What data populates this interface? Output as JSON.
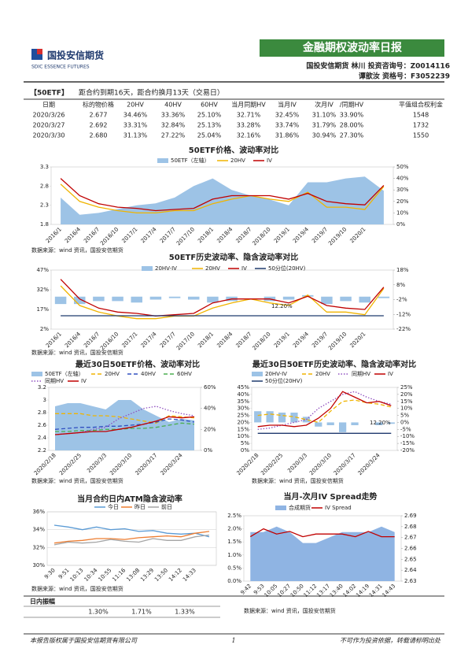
{
  "header": {
    "company": "国投安信期货",
    "company_en": "SDIC ESSENCE FUTURES",
    "report_title": "金融期权波动率日报",
    "analyst_line": "国投安信期货 林川 投资咨询号：Z0014116",
    "analyst_line2": "谭歆汝 资格号：F3052239"
  },
  "info": {
    "tag": "【50ETF】",
    "text": "距合约到期16天，距合约换月13天（交易日）"
  },
  "table": {
    "columns": [
      "日期",
      "标的物价格",
      "20HV",
      "40HV",
      "60HV",
      "当月同期HV",
      "当月IV",
      "次月IV",
      "/同期HV",
      "平值组合权利金"
    ],
    "rows": [
      [
        "2020/3/26",
        "2.677",
        "34.46%",
        "33.36%",
        "25.10%",
        "32.71%",
        "32.45%",
        "31.10%",
        "33.90%",
        "1548"
      ],
      [
        "2020/3/27",
        "2.692",
        "33.31%",
        "32.84%",
        "25.13%",
        "33.28%",
        "33.74%",
        "31.79%",
        "28.00%",
        "1732"
      ],
      [
        "2020/3/30",
        "2.680",
        "31.13%",
        "27.22%",
        "25.04%",
        "32.16%",
        "31.86%",
        "30.94%",
        "27.30%",
        "1550"
      ]
    ]
  },
  "chart_data": [
    {
      "type": "line",
      "title": "50ETF价格、波动率对比",
      "source": "数据来源：wind 资讯，国投安信期货",
      "categories": [
        "2016/1",
        "2016/4",
        "2016/7",
        "2016/10",
        "2017/1",
        "2017/4",
        "2017/7",
        "2017/10",
        "2018/1",
        "2018/4",
        "2018/7",
        "2018/10",
        "2019/1",
        "2019/4",
        "2019/7",
        "2019/10",
        "2020/1",
        null
      ],
      "series": [
        {
          "name": "50ETF（左轴）",
          "kind": "area",
          "color": "#9dc3e6",
          "values": [
            2.5,
            2.05,
            2.1,
            2.2,
            2.3,
            2.35,
            2.5,
            2.8,
            3.0,
            2.7,
            2.55,
            2.45,
            2.3,
            2.9,
            2.9,
            3.0,
            3.05,
            2.68
          ]
        },
        {
          "name": "20HV",
          "kind": "line",
          "axis": "y2",
          "color": "#f0b400",
          "values": [
            35,
            20,
            15,
            12,
            10,
            10,
            12,
            12,
            18,
            22,
            25,
            22,
            20,
            28,
            15,
            15,
            13,
            33
          ]
        },
        {
          "name": "IV",
          "kind": "line",
          "axis": "y2",
          "color": "#c00000",
          "values": [
            40,
            25,
            18,
            15,
            14,
            12,
            13,
            14,
            22,
            25,
            25,
            25,
            22,
            27,
            20,
            18,
            17,
            34
          ]
        }
      ],
      "ylim": [
        1.8,
        3.3
      ],
      "yticks": [
        1.8,
        2.3,
        2.8,
        3.3
      ],
      "y2lim": [
        0,
        50
      ],
      "y2ticks": [
        {
          "value": 0,
          "label": "0%"
        },
        {
          "value": 10,
          "label": "10%"
        },
        {
          "value": 20,
          "label": "20%"
        },
        {
          "value": 30,
          "label": "30%"
        },
        {
          "value": 40,
          "label": "40%"
        },
        {
          "value": 50,
          "label": "50%"
        }
      ],
      "grid": false
    },
    {
      "type": "line",
      "title": "50ETF历史波动率、隐含波动率对比",
      "source": "数据来源：wind 资讯，国投安信期货",
      "annotation": "12.20%",
      "categories": [
        "2016/1",
        "2016/4",
        "2016/7",
        "2016/10",
        "2017/1",
        "2017/4",
        "2017/7",
        "2017/10",
        "2018/1",
        "2018/4",
        "2018/7",
        "2018/10",
        "2019/1",
        "2019/4",
        "2019/7",
        "2019/10",
        "2020/1",
        null
      ],
      "series": [
        {
          "name": "20HV-IV",
          "kind": "bar",
          "axis": "y2",
          "color": "#9dc3e6",
          "values": [
            -5,
            -5,
            -3,
            -3,
            -4,
            -2,
            -1,
            -2,
            -4,
            -3,
            0,
            -3,
            -2,
            1,
            -5,
            -3,
            -4,
            -1
          ]
        },
        {
          "name": "20HV",
          "kind": "line",
          "color": "#f0b400",
          "values": [
            35,
            20,
            15,
            12,
            10,
            10,
            12,
            12,
            18,
            22,
            25,
            22,
            20,
            28,
            15,
            15,
            13,
            33
          ]
        },
        {
          "name": "IV",
          "kind": "line",
          "color": "#c00000",
          "values": [
            40,
            25,
            18,
            15,
            14,
            12,
            13,
            14,
            22,
            25,
            25,
            25,
            22,
            27,
            20,
            18,
            17,
            34
          ]
        },
        {
          "name": "50分位(20HV)",
          "kind": "line",
          "color": "#1f3a6e",
          "values": [
            12.2,
            12.2,
            12.2,
            12.2,
            12.2,
            12.2,
            12.2,
            12.2,
            12.2,
            12.2,
            12.2,
            12.2,
            12.2,
            12.2,
            12.2,
            12.2,
            12.2,
            12.2
          ]
        }
      ],
      "ylim": [
        2,
        47
      ],
      "yticks": [
        {
          "value": 2,
          "label": "2%"
        },
        {
          "value": 17,
          "label": "17%"
        },
        {
          "value": 32,
          "label": "32%"
        },
        {
          "value": 47,
          "label": "47%"
        }
      ],
      "y2lim": [
        -22,
        18
      ],
      "y2ticks": [
        {
          "value": -22,
          "label": "-22%"
        },
        {
          "value": -12,
          "label": "-12%"
        },
        {
          "value": -2,
          "label": "-2%"
        },
        {
          "value": 8,
          "label": "8%"
        },
        {
          "value": 18,
          "label": "18%"
        }
      ],
      "grid": false
    },
    {
      "type": "line",
      "title": "最近30日50ETF价格、波动率对比",
      "source": "数据来源：wind 资讯，国投安信期货",
      "categories": [
        "2020/2/18",
        null,
        "2020/2/25",
        null,
        "2020/3/3",
        null,
        "2020/3/10",
        null,
        "2020/3/17",
        null,
        "2020/3/24",
        null
      ],
      "series": [
        {
          "name": "50ETF（左轴）",
          "kind": "area",
          "color": "#9dc3e6",
          "values": [
            2.9,
            2.95,
            2.95,
            2.9,
            2.85,
            3.0,
            3.0,
            2.85,
            2.75,
            2.65,
            2.7,
            2.68
          ]
        },
        {
          "name": "20HV",
          "kind": "line",
          "axis": "y2",
          "dash": "dashed",
          "color": "#f0b400",
          "values": [
            35,
            35,
            35,
            33,
            33,
            32,
            30,
            28,
            26,
            33,
            32,
            31
          ]
        },
        {
          "name": "40HV",
          "kind": "line",
          "axis": "y2",
          "dash": "dashed",
          "color": "#3050c0",
          "values": [
            20,
            21,
            22,
            22,
            23,
            23,
            24,
            25,
            27,
            30,
            29,
            27
          ]
        },
        {
          "name": "60HV",
          "kind": "line",
          "axis": "y2",
          "dash": "dashed",
          "color": "#4caf50",
          "values": [
            18,
            18,
            19,
            19,
            20,
            20,
            21,
            21,
            22,
            24,
            26,
            25
          ]
        },
        {
          "name": "同期HV",
          "kind": "line",
          "axis": "y2",
          "dash": "dotted",
          "color": "#9050c0",
          "values": [
            15,
            16,
            17,
            20,
            22,
            30,
            35,
            40,
            42,
            38,
            35,
            33
          ]
        },
        {
          "name": "IV",
          "kind": "line",
          "axis": "y2",
          "color": "#c00000",
          "values": [
            15,
            16,
            17,
            18,
            18,
            20,
            22,
            25,
            28,
            32,
            31,
            32
          ]
        }
      ],
      "ylim": [
        2.2,
        3.2
      ],
      "yticks": [
        2.2,
        2.4,
        2.6,
        2.8,
        3,
        3.2
      ],
      "y2lim": [
        0,
        60
      ],
      "y2ticks": [
        {
          "value": 0,
          "label": "0%"
        },
        {
          "value": 20,
          "label": "20%"
        },
        {
          "value": 40,
          "label": "40%"
        },
        {
          "value": 60,
          "label": "60%"
        }
      ],
      "grid": false
    },
    {
      "type": "line",
      "title": "最近30日50ETF历史波动率、隐含波动率对比",
      "source": "数据来源：wind 资讯，国投安信期货",
      "annotation": "12.20%",
      "categories": [
        "2020/2/18",
        null,
        "2020/2/25",
        null,
        "2020/3/3",
        null,
        "2020/3/10",
        null,
        "2020/3/17",
        null,
        "2020/3/24",
        null
      ],
      "series": [
        {
          "name": "20HV-IV",
          "kind": "bar",
          "axis": "y2",
          "color": "#9dc3e6",
          "values": [
            8,
            8,
            7,
            7,
            4,
            -3,
            -2,
            -7,
            -2,
            0,
            -2,
            -1
          ]
        },
        {
          "name": "20HV",
          "kind": "line",
          "dash": "dashed",
          "color": "#f0b400",
          "values": [
            25,
            26,
            25,
            24,
            22,
            20,
            28,
            35,
            36,
            34,
            33,
            31
          ]
        },
        {
          "name": "同期HV",
          "kind": "line",
          "dash": "dotted",
          "color": "#9050c0",
          "values": [
            15,
            16,
            18,
            20,
            22,
            30,
            35,
            40,
            42,
            38,
            35,
            33
          ]
        },
        {
          "name": "IV",
          "kind": "line",
          "color": "#c00000",
          "values": [
            17,
            18,
            18,
            17,
            18,
            23,
            30,
            42,
            38,
            34,
            35,
            32
          ]
        },
        {
          "name": "50分位(20HV)",
          "kind": "line",
          "color": "#1f3a6e",
          "values": [
            12.2,
            12.2,
            12.2,
            12.2,
            12.2,
            12.2,
            12.2,
            12.2,
            12.2,
            12.2,
            12.2,
            12.2
          ]
        }
      ],
      "ylim": [
        0,
        45
      ],
      "yticks": [
        {
          "value": 0,
          "label": "0%"
        },
        {
          "value": 5,
          "label": "5%"
        },
        {
          "value": 10,
          "label": "10%"
        },
        {
          "value": 15,
          "label": "15%"
        },
        {
          "value": 20,
          "label": "20%"
        },
        {
          "value": 25,
          "label": "25%"
        },
        {
          "value": 30,
          "label": "30%"
        },
        {
          "value": 35,
          "label": "35%"
        },
        {
          "value": 40,
          "label": "40%"
        },
        {
          "value": 45,
          "label": "45%"
        }
      ],
      "y2lim": [
        -20,
        25
      ],
      "y2ticks": [
        {
          "value": -20,
          "label": "-20%"
        },
        {
          "value": -15,
          "label": "-15%"
        },
        {
          "value": -10,
          "label": "-10%"
        },
        {
          "value": -5,
          "label": "-5%"
        },
        {
          "value": 0,
          "label": "0%"
        },
        {
          "value": 5,
          "label": "5%"
        },
        {
          "value": 10,
          "label": "10%"
        },
        {
          "value": 15,
          "label": "15%"
        },
        {
          "value": 20,
          "label": "20%"
        },
        {
          "value": 25,
          "label": "25%"
        }
      ],
      "grid": false
    },
    {
      "type": "line",
      "title": "当月合约日内ATM隐含波动率",
      "source": "数据来源：wind 资讯，国投安信期货",
      "categories": [
        "9:30",
        "9:51",
        "10:13",
        "10:34",
        "10:55",
        "11:16",
        "13:08",
        "13:29",
        "13:50",
        "14:12",
        "14:33",
        null
      ],
      "series": [
        {
          "name": "今日",
          "kind": "line",
          "color": "#5b9bd5",
          "values": [
            34.5,
            34.3,
            34.0,
            34.3,
            34.0,
            34.1,
            33.8,
            33.9,
            33.6,
            33.5,
            33.6,
            33.2
          ]
        },
        {
          "name": "昨日",
          "kind": "line",
          "color": "#ed7d31",
          "values": [
            32.5,
            32.7,
            32.8,
            33.0,
            33.0,
            32.9,
            33.1,
            33.2,
            33.3,
            33.2,
            33.6,
            33.8
          ]
        },
        {
          "name": "前日",
          "kind": "line",
          "color": "#a5a5a5",
          "values": [
            32.3,
            32.6,
            32.5,
            32.6,
            32.9,
            32.7,
            32.6,
            33.0,
            32.8,
            32.8,
            33.2,
            33.4
          ]
        }
      ],
      "ylim": [
        30,
        36
      ],
      "yticks": [
        {
          "value": 30,
          "label": "30%"
        },
        {
          "value": 32,
          "label": "32%"
        },
        {
          "value": 34,
          "label": "34%"
        },
        {
          "value": 36,
          "label": "36%"
        }
      ],
      "grid": true
    },
    {
      "type": "line",
      "title": "当月-次月IV Spread走势",
      "source": "数据来源：wind 资讯，国投安信期货",
      "categories": [
        "9:42",
        "9:53",
        "10:05",
        "10:27",
        "10:50",
        "11:12",
        "13:17",
        "13:40",
        "14:02",
        "14:19",
        "14:31",
        "14:43"
      ],
      "series": [
        {
          "name": "合成期货",
          "kind": "area",
          "axis": "y2",
          "color": "#8fb4e3",
          "values": [
            2.675,
            2.675,
            2.68,
            2.675,
            2.665,
            2.665,
            2.67,
            2.675,
            2.675,
            2.675,
            2.68,
            2.675
          ]
        },
        {
          "name": "IV Spread",
          "kind": "line",
          "color": "#c00000",
          "values": [
            1.7,
            2.0,
            1.8,
            1.9,
            1.7,
            1.8,
            1.8,
            1.8,
            1.7,
            1.9,
            1.7,
            1.7
          ]
        }
      ],
      "ylim": [
        0,
        2.5
      ],
      "yticks": [
        {
          "value": 0,
          "label": "0.0%"
        },
        {
          "value": 0.5,
          "label": "0.5%"
        },
        {
          "value": 1,
          "label": "1.0%"
        },
        {
          "value": 1.5,
          "label": "1.5%"
        },
        {
          "value": 2,
          "label": "2.0%"
        },
        {
          "value": 2.5,
          "label": "2.5%"
        }
      ],
      "y2lim": [
        2.63,
        2.69
      ],
      "y2ticks": [
        2.63,
        2.64,
        2.65,
        2.66,
        2.67,
        2.68,
        2.69
      ],
      "grid": false
    }
  ],
  "amplitude": {
    "label": "日内振幅",
    "values": [
      "1.30%",
      "1.71%",
      "1.33%"
    ]
  },
  "footer": {
    "left": "本报告版权属于国投安信期货有限公司",
    "page": "1",
    "right": "不可作为投资依据，转载请标明出处"
  }
}
